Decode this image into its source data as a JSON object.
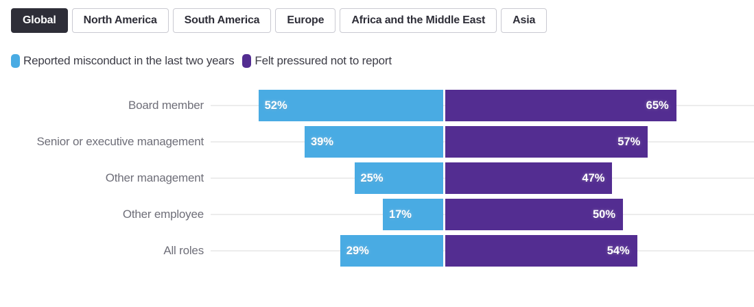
{
  "tabs": [
    {
      "label": "Global",
      "active": true
    },
    {
      "label": "North America",
      "active": false
    },
    {
      "label": "South America",
      "active": false
    },
    {
      "label": "Europe",
      "active": false
    },
    {
      "label": "Africa and the Middle East",
      "active": false
    },
    {
      "label": "Asia",
      "active": false
    }
  ],
  "legend": [
    {
      "label": "Reported misconduct in the last two years",
      "color": "#49ABE3"
    },
    {
      "label": "Felt pressured not to report",
      "color": "#532D91"
    }
  ],
  "chart_data": {
    "type": "bar",
    "orientation": "horizontal-diverging",
    "categories": [
      "Board member",
      "Senior or executive management",
      "Other management",
      "Other employee",
      "All roles"
    ],
    "series": [
      {
        "name": "Reported misconduct in the last two years",
        "color": "#49ABE3",
        "side": "left",
        "values": [
          52,
          39,
          25,
          17,
          29
        ]
      },
      {
        "name": "Felt pressured not to report",
        "color": "#532D91",
        "side": "right",
        "values": [
          65,
          57,
          47,
          50,
          54
        ]
      }
    ],
    "value_suffix": "%",
    "value_labels": "inside-edge",
    "grid": true,
    "legend_position": "top",
    "xlabel": "",
    "ylabel": ""
  },
  "colors": {
    "active_tab_bg": "#2e2e38",
    "tab_border": "#c9c9d1",
    "category_label": "#6e6e78",
    "gridline": "#ececec",
    "background": "#ffffff"
  }
}
